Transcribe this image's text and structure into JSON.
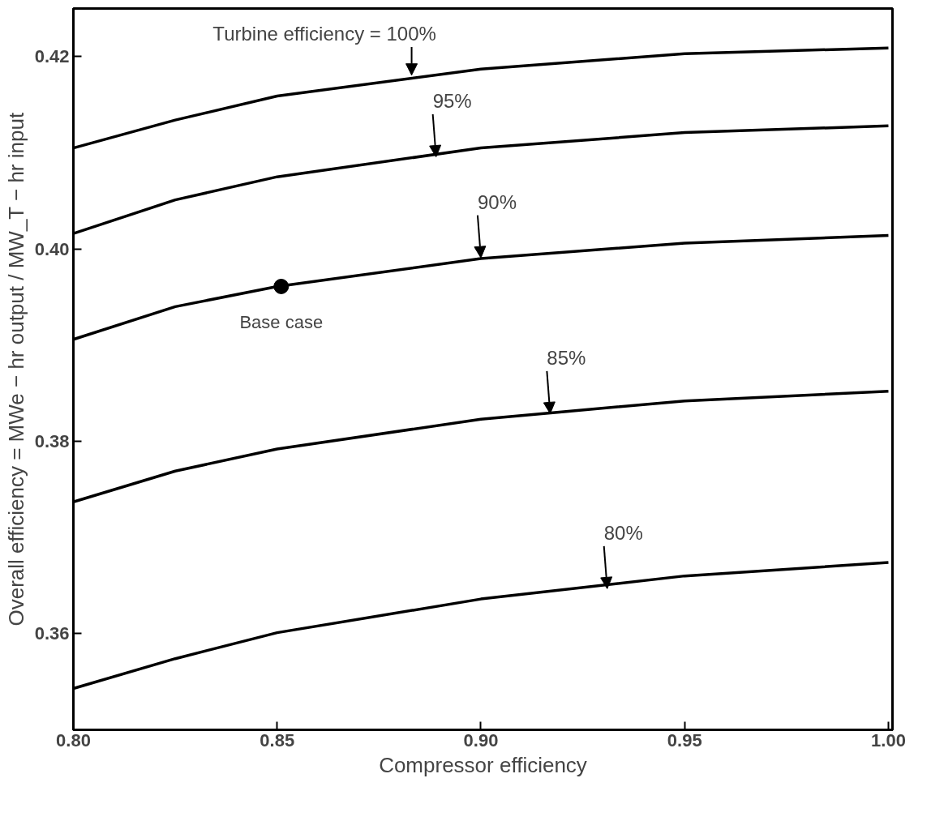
{
  "chart_data": {
    "type": "line",
    "xlabel": "Compressor efficiency",
    "ylabel": "Overall efficiency = MWe − hr output / MW_T − hr input",
    "x": [
      0.8,
      0.825,
      0.85,
      0.9,
      0.95,
      1.0
    ],
    "series": [
      {
        "color": "#000000",
        "values": [
          0.4105,
          0.4134,
          0.4159,
          0.4187,
          0.4203,
          0.4209
        ]
      },
      {
        "color": "#000000",
        "values": [
          0.4016,
          0.4051,
          0.4075,
          0.4105,
          0.4121,
          0.4128
        ]
      },
      {
        "color": "#000000",
        "values": [
          0.3906,
          0.394,
          0.3961,
          0.399,
          0.4006,
          0.4014
        ]
      },
      {
        "color": "#000000",
        "values": [
          0.3737,
          0.3769,
          0.3792,
          0.3823,
          0.3842,
          0.3852
        ]
      },
      {
        "color": "#000000",
        "values": [
          0.3543,
          0.3574,
          0.3601,
          0.3636,
          0.366,
          0.3674
        ]
      },
      {
        "type": "scatter",
        "color": "#000000",
        "x": [
          0.851
        ],
        "values": [
          0.3961
        ],
        "marker": "circle"
      }
    ],
    "annotations": [
      {
        "text": "Turbine efficiency = 100%",
        "x": 0.883,
        "y": 0.418
      },
      {
        "text": "95%",
        "x": 0.889,
        "y": 0.4095
      },
      {
        "text": "90%",
        "x": 0.9,
        "y": 0.399
      },
      {
        "text": "85%",
        "x": 0.917,
        "y": 0.3828
      },
      {
        "text": "80%",
        "x": 0.931,
        "y": 0.3646
      },
      {
        "text": "Base case",
        "x": 0.851,
        "y": 0.3961
      }
    ],
    "xlim": [
      0.8,
      1.001
    ],
    "ylim": [
      0.35,
      0.425
    ],
    "xticks": [
      {
        "value": 0.8,
        "label": "0.80"
      },
      {
        "value": 0.85,
        "label": "0.85"
      },
      {
        "value": 0.9,
        "label": "0.90"
      },
      {
        "value": 0.95,
        "label": "0.95"
      },
      {
        "value": 1.0,
        "label": "1.00"
      }
    ],
    "yticks": [
      {
        "value": 0.36,
        "label": "0.36"
      },
      {
        "value": 0.38,
        "label": "0.38"
      },
      {
        "value": 0.4,
        "label": "0.40"
      },
      {
        "value": 0.42,
        "label": "0.42"
      }
    ],
    "grid": false,
    "marker": "none",
    "line_style": "solid"
  }
}
